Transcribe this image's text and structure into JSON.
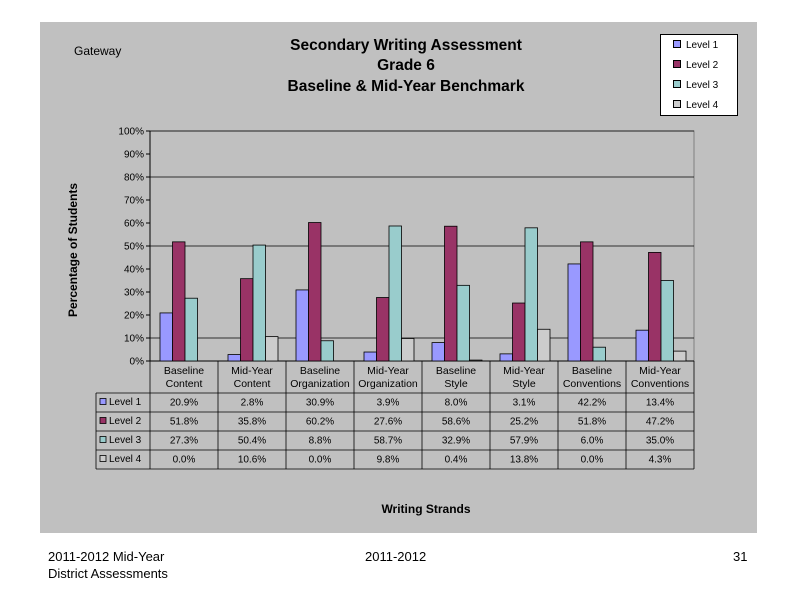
{
  "header": {
    "district": "Gateway",
    "title_lines": [
      "Secondary Writing Assessment",
      "Grade 6",
      "Baseline & Mid-Year Benchmark"
    ]
  },
  "colors": {
    "level1": "#9999ff",
    "level2": "#993366",
    "level3": "#99cccc",
    "level4": "#cccccc",
    "plot_bg": "#c0c0c0",
    "panel_bg": "#c0c0c0"
  },
  "chart_data": {
    "type": "bar",
    "ylabel": "Percentage of Students",
    "xlabel": "Writing Strands",
    "ylim": [
      0,
      100
    ],
    "yticks": [
      "0%",
      "10%",
      "20%",
      "30%",
      "40%",
      "50%",
      "60%",
      "70%",
      "80%",
      "90%",
      "100%"
    ],
    "gridlines": [
      0,
      10,
      50,
      80,
      100
    ],
    "legend_position": "top-right",
    "categories": [
      [
        "Baseline",
        "Content"
      ],
      [
        "Mid-Year",
        "Content"
      ],
      [
        "Baseline",
        "Organization"
      ],
      [
        "Mid-Year",
        "Organization"
      ],
      [
        "Baseline",
        "Style"
      ],
      [
        "Mid-Year",
        "Style"
      ],
      [
        "Baseline",
        "Conventions"
      ],
      [
        "Mid-Year",
        "Conventions"
      ]
    ],
    "series": [
      {
        "name": "Level 1",
        "values": [
          20.9,
          2.8,
          30.9,
          3.9,
          8.0,
          3.1,
          42.2,
          13.4
        ],
        "labels": [
          "20.9%",
          "2.8%",
          "30.9%",
          "3.9%",
          "8.0%",
          "3.1%",
          "42.2%",
          "13.4%"
        ]
      },
      {
        "name": "Level 2",
        "values": [
          51.8,
          35.8,
          60.2,
          27.6,
          58.6,
          25.2,
          51.8,
          47.2
        ],
        "labels": [
          "51.8%",
          "35.8%",
          "60.2%",
          "27.6%",
          "58.6%",
          "25.2%",
          "51.8%",
          "47.2%"
        ]
      },
      {
        "name": "Level 3",
        "values": [
          27.3,
          50.4,
          8.8,
          58.7,
          32.9,
          57.9,
          6.0,
          35.0
        ],
        "labels": [
          "27.3%",
          "50.4%",
          "8.8%",
          "58.7%",
          "32.9%",
          "57.9%",
          "6.0%",
          "35.0%"
        ]
      },
      {
        "name": "Level 4",
        "values": [
          0.0,
          10.6,
          0.0,
          9.8,
          0.4,
          13.8,
          0.0,
          4.3
        ],
        "labels": [
          "0.0%",
          "10.6%",
          "0.0%",
          "9.8%",
          "0.4%",
          "13.8%",
          "0.0%",
          "4.3%"
        ]
      }
    ]
  },
  "footer": {
    "left_line1": "2011-2012  Mid-Year",
    "left_line2": "District Assessments",
    "center": "2011-2012",
    "page_number": "31"
  }
}
